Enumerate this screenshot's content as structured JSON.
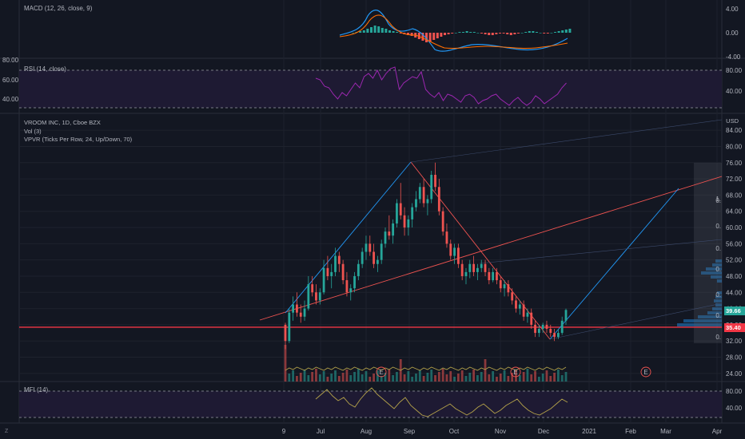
{
  "panes": {
    "macd": {
      "title": "MACD (12, 26, close, 9)",
      "ticks": [
        "4.00",
        "0.00",
        "-4.00"
      ]
    },
    "rsi": {
      "title": "RSI (14, close)",
      "ticks": [
        "80.00",
        "40.00"
      ],
      "left_ticks": [
        "80.00",
        "60.00",
        "40.00"
      ]
    },
    "main": {
      "legend": [
        "VROOM INC, 1D, Cboe BZX",
        "Vol (3)",
        "VPVR (Ticks Per Row, 24, Up/Down, 70)"
      ],
      "currency": "USD",
      "ticks": [
        "84.00",
        "80.00",
        "76.00",
        "72.00",
        "68.00",
        "64.00",
        "60.00",
        "56.00",
        "52.00",
        "48.00",
        "44.00",
        "40.00",
        "36.00",
        "32.00",
        "28.00",
        "24.00"
      ],
      "last_price": "39.66",
      "hline_price": "35.40",
      "event_marker": "E",
      "vpvr_labels": [
        "0.",
        "0.",
        "0.",
        "0.",
        "0.",
        "0.",
        "0.",
        "1."
      ]
    },
    "mfi": {
      "title": "MFI (14)",
      "ticks": [
        "80.00",
        "40.00"
      ]
    }
  },
  "x_axis": [
    "9",
    "Jul",
    "Aug",
    "Sep",
    "Oct",
    "Nov",
    "Dec",
    "2021",
    "Feb",
    "Mar",
    "Apr"
  ],
  "corner_button": "Z",
  "colors": {
    "background": "#131722",
    "up": "#26a69a",
    "down": "#ef5350",
    "hline": "#f23645",
    "trend_blue": "#2196f3",
    "rsi": "#9c27b0",
    "mfi": "#b5a34a"
  },
  "chart_data": {
    "type": "candlestick",
    "ticker": "VROOM INC",
    "interval": "1D",
    "exchange": "Cboe BZX",
    "ylim": [
      22,
      86
    ],
    "ohlc": [
      [
        22,
        36,
        36.5,
        30,
        32
      ],
      [
        23,
        32,
        40,
        31.5,
        39
      ],
      [
        24,
        39,
        43,
        37,
        41
      ],
      [
        25,
        41,
        44,
        38,
        39
      ],
      [
        26,
        39,
        41,
        36.5,
        38
      ],
      [
        27,
        38,
        42,
        37,
        40
      ],
      [
        28,
        40,
        48,
        39.5,
        46
      ],
      [
        29,
        46,
        48,
        43,
        44
      ],
      [
        30,
        44,
        46,
        41,
        42
      ],
      [
        31,
        42,
        45,
        41,
        44
      ],
      [
        32,
        44,
        52,
        43.5,
        50
      ],
      [
        33,
        50,
        53,
        47,
        48
      ],
      [
        34,
        48,
        51,
        45,
        49
      ],
      [
        35,
        49,
        55,
        48,
        53
      ],
      [
        36,
        53,
        54,
        49,
        51
      ],
      [
        37,
        51,
        52,
        46,
        47
      ],
      [
        38,
        47,
        49,
        43,
        44
      ],
      [
        39,
        44,
        46,
        42,
        45
      ],
      [
        40,
        45,
        49,
        44,
        48
      ],
      [
        41,
        48,
        52,
        47,
        51
      ],
      [
        42,
        51,
        55,
        50,
        54
      ],
      [
        43,
        54,
        58,
        52,
        56
      ],
      [
        44,
        56,
        58,
        53,
        54
      ],
      [
        45,
        54,
        56,
        50,
        51
      ],
      [
        46,
        51,
        53,
        49,
        52
      ],
      [
        47,
        52,
        57,
        51,
        56
      ],
      [
        48,
        56,
        60,
        55,
        59
      ],
      [
        49,
        59,
        63,
        57,
        58
      ],
      [
        50,
        58,
        62,
        56,
        61
      ],
      [
        51,
        61,
        67,
        60,
        66
      ],
      [
        52,
        66,
        71,
        62,
        63
      ],
      [
        53,
        63,
        65,
        58,
        60
      ],
      [
        54,
        60,
        63,
        58,
        62
      ],
      [
        55,
        62,
        66,
        60,
        65
      ],
      [
        56,
        65,
        69,
        64,
        67
      ],
      [
        57,
        67,
        71,
        66,
        70
      ],
      [
        58,
        70,
        72,
        65,
        66
      ],
      [
        59,
        66,
        68,
        63,
        67
      ],
      [
        60,
        67,
        74,
        66,
        73
      ],
      [
        61,
        73,
        76,
        69,
        70
      ],
      [
        62,
        70,
        72,
        63,
        64
      ],
      [
        63,
        64,
        65,
        58,
        59
      ],
      [
        64,
        59,
        61,
        55,
        56
      ],
      [
        65,
        56,
        57,
        52,
        53
      ],
      [
        66,
        53,
        56,
        51,
        55
      ],
      [
        67,
        55,
        56,
        50,
        51
      ],
      [
        68,
        51,
        52,
        47,
        48
      ],
      [
        69,
        48,
        50,
        46,
        49
      ],
      [
        70,
        49,
        52,
        47.5,
        51
      ],
      [
        71,
        51,
        53,
        48,
        49
      ],
      [
        72,
        49,
        51,
        47,
        50
      ],
      [
        73,
        50,
        52,
        49,
        51
      ],
      [
        74,
        51,
        52,
        48,
        49
      ],
      [
        75,
        49,
        50,
        46,
        47
      ],
      [
        76,
        47,
        50,
        46.5,
        49
      ],
      [
        77,
        49,
        50,
        46,
        47
      ],
      [
        78,
        47,
        48,
        44,
        45
      ],
      [
        79,
        45,
        47,
        43,
        46
      ],
      [
        80,
        46,
        47,
        43,
        44
      ],
      [
        81,
        44,
        45,
        41,
        42
      ],
      [
        82,
        42,
        43,
        39,
        40
      ],
      [
        83,
        40,
        42,
        38.5,
        41
      ],
      [
        84,
        41,
        42,
        37,
        38
      ],
      [
        85,
        38,
        40,
        36.5,
        39
      ],
      [
        86,
        39,
        40,
        35,
        36
      ],
      [
        87,
        36,
        37,
        33,
        34
      ],
      [
        88,
        34,
        36,
        33,
        35
      ],
      [
        89,
        35,
        36.5,
        34,
        36
      ],
      [
        90,
        36,
        37,
        34,
        35
      ],
      [
        91,
        35,
        36,
        33,
        34
      ],
      [
        92,
        34,
        35,
        32,
        33
      ],
      [
        93,
        33,
        35,
        32.5,
        34
      ],
      [
        94,
        34,
        38,
        33.5,
        37
      ],
      [
        95,
        37,
        40,
        36,
        39.66
      ]
    ],
    "horizontal_line": 35.4,
    "last_close": 39.66
  }
}
